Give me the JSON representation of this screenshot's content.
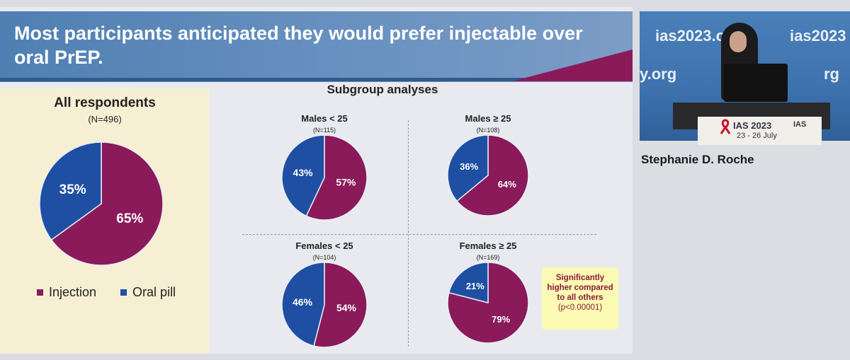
{
  "slide": {
    "title": "Most participants anticipated they would prefer injectable over oral PrEP.",
    "all_respondents_label": "All respondents",
    "all_respondents_n": "(N=496)",
    "subgroup_label": "Subgroup analyses",
    "note": {
      "text": "Significantly higher compared to all others",
      "p": "(p<0.00001)"
    }
  },
  "colors": {
    "injection": "#8a1a5a",
    "oral_pill": "#1f4fa3",
    "banner": "#5a86b7",
    "left_panel": "#f6efd3"
  },
  "chart_data": [
    {
      "type": "pie",
      "title": "All respondents",
      "subtitle": "(N=496)",
      "categories": [
        "Injection",
        "Oral pill"
      ],
      "values": [
        65,
        35
      ],
      "labels": [
        "65%",
        "35%"
      ],
      "legend": "bottom"
    },
    {
      "type": "pie",
      "title": "Males < 25",
      "subtitle": "(N=115)",
      "categories": [
        "Injection",
        "Oral pill"
      ],
      "values": [
        57,
        43
      ],
      "labels": [
        "57%",
        "43%"
      ]
    },
    {
      "type": "pie",
      "title": "Males ≥ 25",
      "subtitle": "(N=108)",
      "categories": [
        "Injection",
        "Oral pill"
      ],
      "values": [
        64,
        36
      ],
      "labels": [
        "64%",
        "36%"
      ]
    },
    {
      "type": "pie",
      "title": "Females < 25",
      "subtitle": "(N=104)",
      "categories": [
        "Injection",
        "Oral pill"
      ],
      "values": [
        54,
        46
      ],
      "labels": [
        "54%",
        "46%"
      ]
    },
    {
      "type": "pie",
      "title": "Females ≥ 25",
      "subtitle": "(N=169)",
      "categories": [
        "Injection",
        "Oral pill"
      ],
      "values": [
        79,
        21
      ],
      "labels": [
        "79%",
        "21%"
      ]
    }
  ],
  "legend": {
    "injection": "Injection",
    "oral_pill": "Oral pill"
  },
  "video": {
    "watermark_left": "ias2023.org",
    "watermark_right": "ias2023",
    "watermark_mid": "y.org",
    "watermark_mid_right": "rg",
    "sign_title": "IAS 2023",
    "sign_dates": "23 - 26 July",
    "sign_brand": "IAS",
    "speaker_name": "Stephanie D. Roche"
  }
}
